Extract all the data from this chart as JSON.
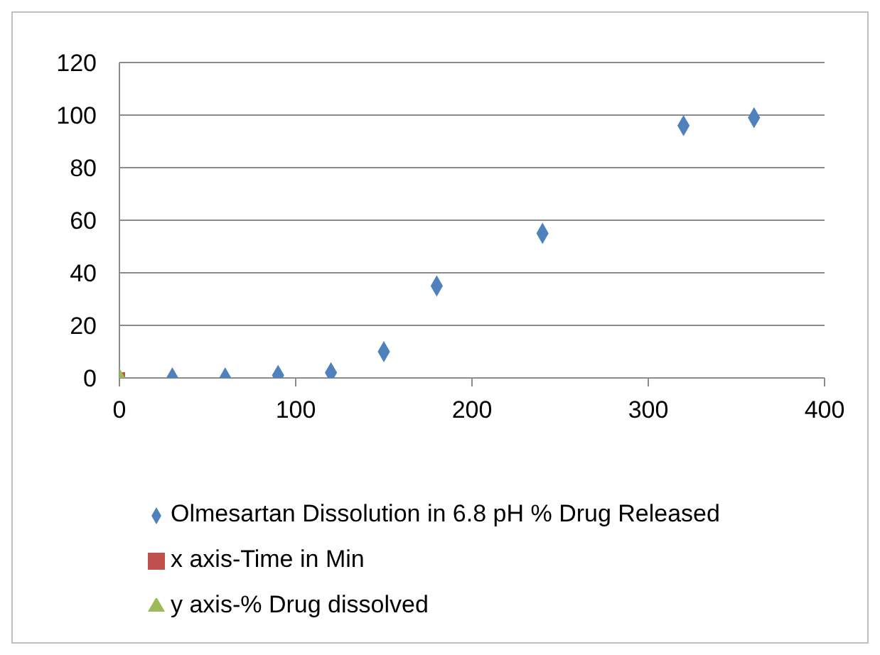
{
  "chart_data": {
    "type": "scatter",
    "xlim": [
      0,
      400
    ],
    "xticks": [
      0,
      100,
      200,
      300,
      400
    ],
    "ylim": [
      0,
      120
    ],
    "yticks": [
      0,
      20,
      40,
      60,
      80,
      100,
      120
    ],
    "grid": "y",
    "legend": "bottom",
    "series": [
      {
        "name": "Olmesartan Dissolution in 6.8 pH  % Drug Released",
        "color": "#4f81bd",
        "marker": "diamond",
        "x": [
          30,
          60,
          90,
          120,
          150,
          180,
          240,
          320,
          360
        ],
        "values": [
          0,
          0,
          1,
          2,
          10,
          35,
          55,
          96,
          99
        ]
      },
      {
        "name": "x axis-Time in Min",
        "color": "#c0504d",
        "marker": "square",
        "x": [
          0
        ],
        "values": [
          0
        ]
      },
      {
        "name": "y axis-% Drug dissolved",
        "color": "#9bbb59",
        "marker": "triangle",
        "x": [
          0
        ],
        "values": [
          0
        ]
      }
    ]
  }
}
